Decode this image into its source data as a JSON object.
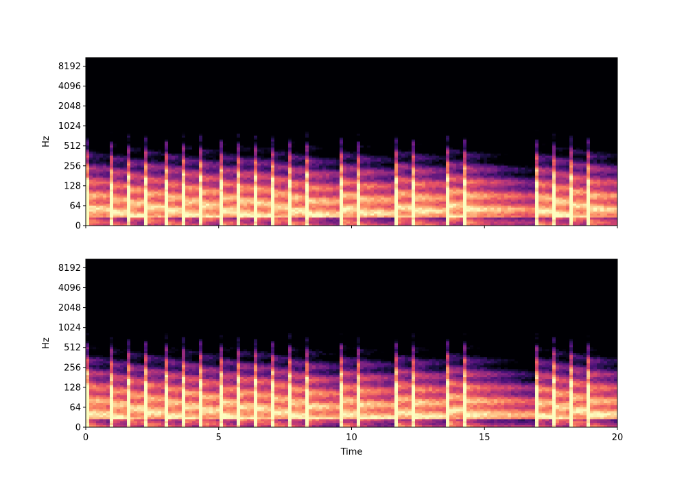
{
  "chart_data": [
    {
      "type": "heatmap",
      "title": "",
      "xlabel": "",
      "ylabel": "Hz",
      "xlim": [
        0,
        20
      ],
      "x_ticks": [
        0,
        5,
        10,
        15,
        20
      ],
      "x_tick_labels_visible": false,
      "y_scale": "log2 (with linear region near 0)",
      "y_ticks": [
        0,
        64,
        128,
        256,
        512,
        1024,
        2048,
        4096,
        8192
      ],
      "y_tick_labels": [
        "0",
        "64",
        "128",
        "256",
        "512",
        "1024",
        "2048",
        "4096",
        "8192"
      ],
      "ylim": [
        0,
        11025
      ],
      "colormap": "magma",
      "onset_times": [
        0.0,
        0.85,
        1.5,
        2.2,
        2.95,
        3.65,
        4.3,
        5.0,
        5.7,
        6.3,
        6.95,
        7.65,
        8.25,
        9.6,
        10.2,
        11.6,
        12.3,
        13.6,
        14.25,
        16.9,
        17.55,
        18.2,
        18.85
      ],
      "grid": false,
      "legend": "none"
    },
    {
      "type": "heatmap",
      "title": "",
      "xlabel": "Time",
      "ylabel": "Hz",
      "xlim": [
        0,
        20
      ],
      "x_ticks": [
        0,
        5,
        10,
        15,
        20
      ],
      "x_tick_labels": [
        "0",
        "5",
        "10",
        "15",
        "20"
      ],
      "y_scale": "log2 (with linear region near 0)",
      "y_ticks": [
        0,
        64,
        128,
        256,
        512,
        1024,
        2048,
        4096,
        8192
      ],
      "y_tick_labels": [
        "0",
        "64",
        "128",
        "256",
        "512",
        "1024",
        "2048",
        "4096",
        "8192"
      ],
      "ylim": [
        0,
        11025
      ],
      "colormap": "magma",
      "onset_times": [
        0.0,
        0.85,
        1.5,
        2.2,
        2.95,
        3.65,
        4.3,
        5.0,
        5.7,
        6.3,
        6.95,
        7.65,
        8.25,
        9.6,
        10.2,
        11.6,
        12.3,
        13.6,
        14.25,
        16.9,
        17.55,
        18.2,
        18.85
      ],
      "grid": false,
      "legend": "none"
    }
  ]
}
